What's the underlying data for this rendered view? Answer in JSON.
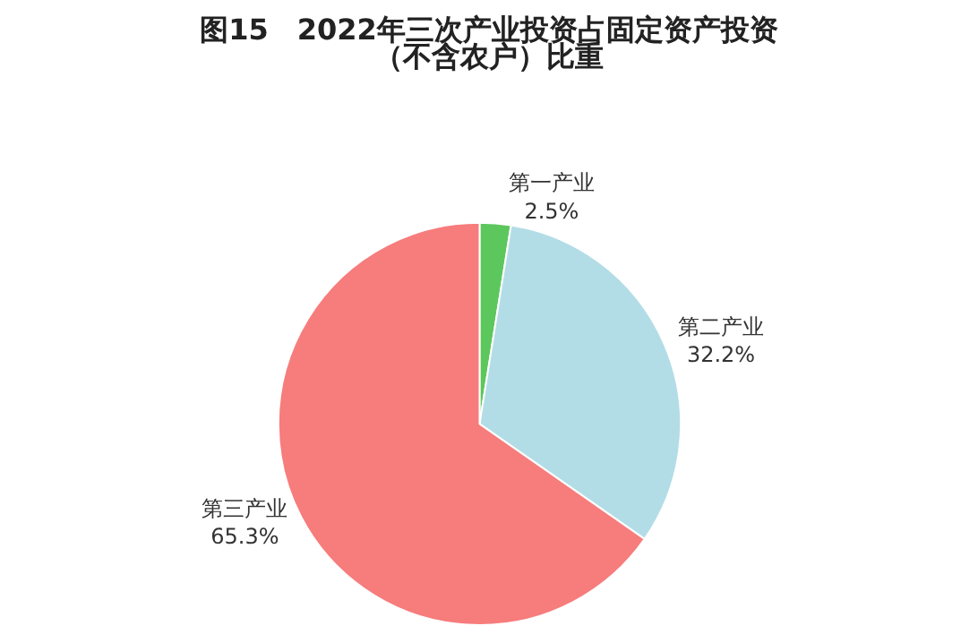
{
  "chart_data": {
    "type": "pie",
    "title": "图15　2022年三次产业投资占固定资产投资",
    "subtitle": "（不含农户）比重",
    "categories": [
      "第一产业",
      "第二产业",
      "第三产业"
    ],
    "values": [
      2.5,
      32.2,
      65.3
    ],
    "value_labels": [
      "2.5%",
      "32.2%",
      "65.3%"
    ],
    "colors": [
      "#5cc75c",
      "#b3dde6",
      "#f77c7c"
    ],
    "legend": false
  }
}
